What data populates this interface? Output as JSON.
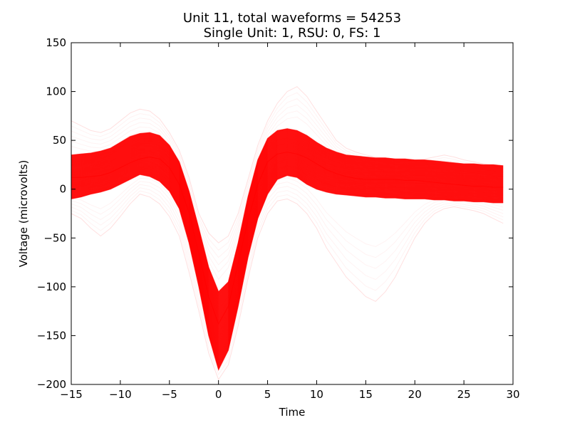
{
  "chart_data": {
    "type": "line",
    "title": "Unit 11, total waveforms = 54253",
    "subtitle": "Single Unit: 1, RSU: 0, FS: 1",
    "xlabel": "Time",
    "ylabel": "Voltage (microvolts)",
    "xlim": [
      -15,
      30
    ],
    "ylim": [
      -200,
      150
    ],
    "xticks": [
      -15,
      -10,
      -5,
      0,
      5,
      10,
      15,
      20,
      25,
      30
    ],
    "yticks": [
      150,
      100,
      50,
      0,
      -50,
      -100,
      -150,
      -200
    ],
    "grid": false,
    "color": "#ff0000",
    "x": [
      -15,
      -14,
      -13,
      -12,
      -11,
      -10,
      -9,
      -8,
      -7,
      -6,
      -5,
      -4,
      -3,
      -2,
      -1,
      0,
      1,
      2,
      3,
      4,
      5,
      6,
      7,
      8,
      9,
      10,
      11,
      12,
      13,
      14,
      15,
      16,
      17,
      18,
      19,
      20,
      21,
      22,
      23,
      24,
      25,
      26,
      27,
      28,
      29
    ],
    "series": [
      {
        "values": [
          12,
          12,
          13,
          14,
          17,
          22,
          27,
          31,
          33,
          31,
          22,
          5,
          -24,
          -66,
          -110,
          -138,
          -120,
          -76,
          -32,
          5,
          28,
          36,
          38,
          36,
          32,
          26,
          20,
          16,
          13,
          11,
          10,
          10,
          10,
          10,
          9,
          9,
          8,
          7,
          6,
          5,
          4,
          3,
          3,
          2,
          2
        ]
      },
      {
        "values": [
          -10,
          -8,
          -5,
          -3,
          0,
          5,
          10,
          15,
          13,
          8,
          -2,
          -20,
          -55,
          -100,
          -150,
          -185,
          -165,
          -120,
          -70,
          -30,
          -5,
          10,
          14,
          12,
          5,
          0,
          -3,
          -5,
          -6,
          -7,
          -8,
          -8,
          -9,
          -9,
          -10,
          -10,
          -10,
          -11,
          -11,
          -12,
          -12,
          -13,
          -13,
          -14,
          -14
        ]
      },
      {
        "values": [
          35,
          36,
          37,
          39,
          42,
          48,
          54,
          57,
          58,
          55,
          45,
          28,
          -2,
          -40,
          -80,
          -105,
          -95,
          -55,
          -8,
          30,
          52,
          60,
          62,
          60,
          55,
          48,
          42,
          38,
          35,
          34,
          33,
          32,
          32,
          31,
          31,
          30,
          30,
          29,
          28,
          27,
          26,
          26,
          25,
          25,
          24
        ]
      },
      {
        "values": [
          70,
          65,
          60,
          58,
          62,
          70,
          78,
          82,
          80,
          72,
          58,
          40,
          12,
          -25,
          -45,
          -55,
          -48,
          -25,
          10,
          45,
          70,
          88,
          100,
          105,
          95,
          80,
          65,
          50,
          42,
          38,
          35,
          33,
          32,
          31,
          30,
          30,
          31,
          33,
          35,
          33,
          30,
          28,
          26,
          24,
          22
        ]
      },
      {
        "values": [
          -25,
          -30,
          -40,
          -48,
          -40,
          -28,
          -15,
          -5,
          -8,
          -15,
          -28,
          -48,
          -85,
          -125,
          -168,
          -195,
          -180,
          -140,
          -92,
          -50,
          -25,
          -12,
          -10,
          -15,
          -25,
          -40,
          -60,
          -75,
          -90,
          -100,
          -110,
          -115,
          -105,
          -90,
          -70,
          -50,
          -35,
          -25,
          -20,
          -18,
          -20,
          -22,
          -25,
          -30,
          -35
        ]
      }
    ]
  }
}
